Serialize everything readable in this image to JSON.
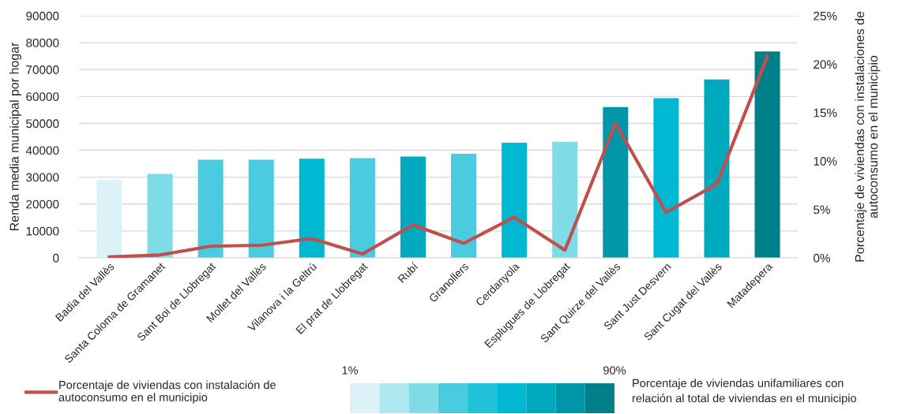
{
  "chart_data": {
    "type": "bar",
    "categories": [
      "Badia del Vallès",
      "Santa Coloma de Gramanet",
      "Sant Boi de Llobregat",
      "Mollet del Vallès",
      "Vilanova i la Geltrú",
      "El prat de Llobregat",
      "Rubí",
      "Granollers",
      "Cerdanyola",
      "Esplugues de Llobregat",
      "Sant Quirze del Vallès",
      "Sant Just Desvern",
      "Sant Cugat del Vallès",
      "Matadepera"
    ],
    "series": [
      {
        "colors": [
          "#daf2f8",
          "#7fdbe6",
          "#4acbdf",
          "#4acbdf",
          "#00b8d2",
          "#4acbdf",
          "#00a9be",
          "#4acbdf",
          "#00b8d2",
          "#7fdbe6",
          "#0096a8",
          "#00b8d2",
          "#00a9be",
          "#007f89"
        ],
        "values": [
          29000,
          31200,
          36500,
          36500,
          36900,
          37100,
          37700,
          38700,
          42800,
          43200,
          56100,
          59400,
          66300,
          76700
        ]
      },
      {
        "type": "line",
        "axis": "y2",
        "name": "Porcentaje de viviendas con instalación de\nautoconsumo en el municipio",
        "color": "#c0504d",
        "values": [
          0.1,
          0.3,
          1.2,
          1.3,
          2.0,
          0.4,
          3.4,
          1.5,
          4.2,
          0.8,
          13.9,
          4.7,
          7.6,
          20.8
        ]
      }
    ],
    "ylabel": "Renda media municipal por hogar",
    "y2label": "Porcentaje de viviendas con instalaciones de\nautoconsumo en el municipio",
    "ylim": [
      0,
      90000
    ],
    "yticks": [
      0,
      10000,
      20000,
      30000,
      40000,
      50000,
      60000,
      70000,
      80000,
      90000
    ],
    "y2lim": [
      0,
      25
    ],
    "y2ticks": [
      {
        "value": 0,
        "label": "0%"
      },
      {
        "value": 5,
        "label": "5%"
      },
      {
        "value": 10,
        "label": "10%"
      },
      {
        "value": 15,
        "label": "15%"
      },
      {
        "value": 20,
        "label": "20%"
      },
      {
        "value": 25,
        "label": "25%"
      }
    ],
    "clabel": "Porcentaje de viviendas unifamiliares con\nrelación al total de viviendas en el municipio",
    "clim": [
      1,
      90
    ],
    "cticks": [
      {
        "value": 1,
        "label": "1%"
      },
      {
        "value": 90,
        "label": "90%"
      }
    ],
    "grid": "y",
    "legend": "bottom left"
  }
}
